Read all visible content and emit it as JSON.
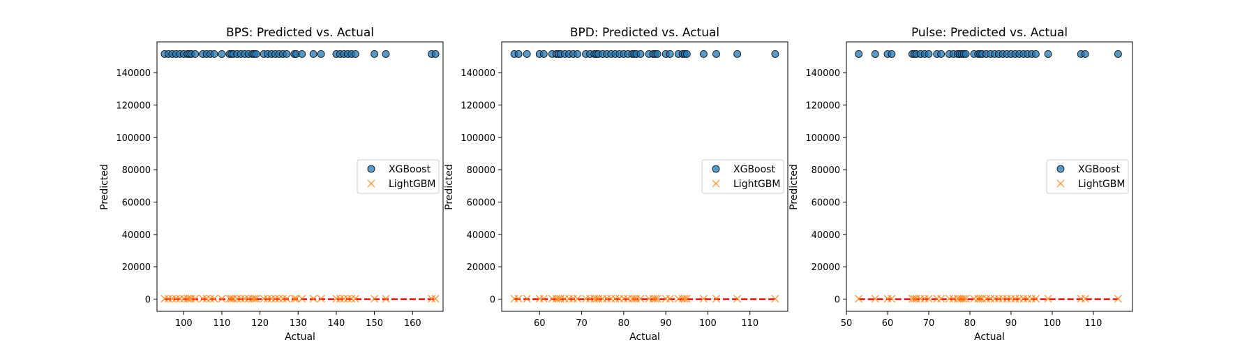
{
  "chart_data": [
    {
      "type": "scatter",
      "title": "BPS: Predicted vs. Actual",
      "xlabel": "Actual",
      "ylabel": "Predicted",
      "xlim": [
        93,
        168
      ],
      "ylim": [
        -7500,
        159000
      ],
      "xticks": [
        100,
        110,
        120,
        130,
        140,
        150,
        160
      ],
      "yticks": [
        0,
        20000,
        40000,
        60000,
        80000,
        100000,
        120000,
        140000
      ],
      "legend": "center-right",
      "x": [
        95,
        96,
        97,
        98,
        99,
        100,
        101,
        101.5,
        102,
        103,
        105,
        106,
        107,
        108,
        110,
        112,
        112.5,
        113,
        114,
        115,
        116,
        117,
        118,
        118.5,
        119,
        121,
        122,
        123,
        124,
        125,
        126,
        127,
        129,
        129.5,
        131,
        134,
        136,
        140,
        141,
        142,
        143,
        144,
        145,
        150,
        153,
        165,
        166
      ],
      "reference_line": {
        "x": [
          95,
          166
        ],
        "y": [
          0,
          0
        ]
      },
      "series": [
        {
          "name": "XGBoost",
          "marker": "circle",
          "color": "#1f77b4",
          "y": 151500
        },
        {
          "name": "LightGBM",
          "marker": "x",
          "color": "#ff7f0e",
          "y": 300
        }
      ]
    },
    {
      "type": "scatter",
      "title": "BPD: Predicted vs. Actual",
      "xlabel": "Actual",
      "ylabel": "Predicted",
      "xlim": [
        51,
        119
      ],
      "ylim": [
        -7500,
        159000
      ],
      "xticks": [
        60,
        70,
        80,
        90,
        100,
        110
      ],
      "yticks": [
        0,
        20000,
        40000,
        60000,
        80000,
        100000,
        120000,
        140000
      ],
      "legend": "center-right",
      "x": [
        54,
        55,
        57,
        60,
        61,
        63,
        64,
        64.5,
        65,
        66,
        67,
        68,
        69,
        71,
        72,
        73,
        73.5,
        74,
        75,
        76,
        77,
        78,
        79,
        80,
        81,
        82,
        82.5,
        83,
        84,
        86,
        87,
        87.5,
        88,
        90,
        91,
        93,
        94,
        94.5,
        95,
        99,
        102,
        107,
        116
      ],
      "reference_line": {
        "x": [
          54,
          116
        ],
        "y": [
          0,
          0
        ]
      },
      "series": [
        {
          "name": "XGBoost",
          "marker": "circle",
          "color": "#1f77b4",
          "y": 151500
        },
        {
          "name": "LightGBM",
          "marker": "x",
          "color": "#ff7f0e",
          "y": 300
        }
      ]
    },
    {
      "type": "scatter",
      "title": "Pulse: Predicted vs. Actual",
      "xlabel": "Actual",
      "ylabel": "Predicted",
      "xlim": [
        50,
        119.5
      ],
      "ylim": [
        -7500,
        159000
      ],
      "xticks": [
        50,
        60,
        70,
        80,
        90,
        100,
        110
      ],
      "yticks": [
        0,
        20000,
        40000,
        60000,
        80000,
        100000,
        120000,
        140000
      ],
      "legend": "center-right",
      "x": [
        53,
        57,
        60,
        61,
        66,
        66.5,
        67,
        68,
        69,
        70,
        72,
        73,
        75,
        76,
        77,
        77.5,
        78,
        78.5,
        79,
        81,
        82,
        82.5,
        83,
        84,
        85,
        86,
        87,
        88,
        89,
        90,
        91,
        92,
        93,
        94,
        95,
        96,
        99,
        107,
        108,
        116
      ],
      "reference_line": {
        "x": [
          53,
          116
        ],
        "y": [
          0,
          0
        ]
      },
      "series": [
        {
          "name": "XGBoost",
          "marker": "circle",
          "color": "#1f77b4",
          "y": 151500
        },
        {
          "name": "LightGBM",
          "marker": "x",
          "color": "#ff7f0e",
          "y": 300
        }
      ]
    }
  ]
}
